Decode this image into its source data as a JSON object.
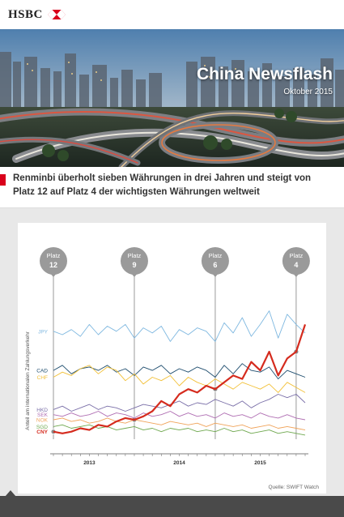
{
  "header": {
    "logo_text": "HSBC",
    "title": "China Newsflash",
    "date": "Oktober 2015"
  },
  "subheadline": "Renminbi überholt sieben Währungen in drei Jahren und steigt von Platz 12 auf Platz 4 der wichtigsten Währungen weltweit",
  "colors": {
    "brand_red": "#d9001b",
    "cny": "#d52b1e",
    "jpy": "#7fb8e0",
    "cad": "#1e4d6e",
    "chf": "#f2c037",
    "hkd": "#7a6fa8",
    "sek": "#b06fb3",
    "nok": "#f0a45b",
    "sgd": "#6fa84f",
    "marker": "#9a9a9a"
  },
  "chart_data": {
    "type": "line",
    "ylabel": "Anteil am internationalen Zahlungsverkehr",
    "x_tick_labels": [
      "2013",
      "2014",
      "2015"
    ],
    "markers": [
      {
        "line1": "Platz",
        "line2": "12",
        "x_index": 0
      },
      {
        "line1": "Platz",
        "line2": "9",
        "x_index": 9
      },
      {
        "line1": "Platz",
        "line2": "6",
        "x_index": 18
      },
      {
        "line1": "Platz",
        "line2": "4",
        "x_index": 27
      }
    ],
    "series": [
      {
        "name": "JPY",
        "color_key": "jpy",
        "values": [
          0.72,
          0.7,
          0.73,
          0.69,
          0.76,
          0.7,
          0.75,
          0.72,
          0.76,
          0.68,
          0.74,
          0.71,
          0.75,
          0.66,
          0.73,
          0.7,
          0.74,
          0.72,
          0.66,
          0.77,
          0.71,
          0.8,
          0.69,
          0.76,
          0.84,
          0.68,
          0.82,
          0.76,
          0.71
        ]
      },
      {
        "name": "CAD",
        "color_key": "cad",
        "values": [
          0.49,
          0.52,
          0.47,
          0.5,
          0.51,
          0.49,
          0.52,
          0.48,
          0.5,
          0.46,
          0.51,
          0.49,
          0.52,
          0.47,
          0.5,
          0.48,
          0.51,
          0.49,
          0.45,
          0.52,
          0.47,
          0.53,
          0.49,
          0.48,
          0.51,
          0.44,
          0.49,
          0.47,
          0.45
        ]
      },
      {
        "name": "CHF",
        "color_key": "chf",
        "values": [
          0.45,
          0.48,
          0.46,
          0.5,
          0.52,
          0.47,
          0.51,
          0.49,
          0.43,
          0.47,
          0.41,
          0.45,
          0.43,
          0.46,
          0.4,
          0.45,
          0.42,
          0.4,
          0.44,
          0.41,
          0.38,
          0.42,
          0.4,
          0.38,
          0.41,
          0.36,
          0.42,
          0.39,
          0.36
        ]
      },
      {
        "name": "HKD",
        "color_key": "hkd",
        "values": [
          0.26,
          0.28,
          0.25,
          0.27,
          0.29,
          0.26,
          0.28,
          0.27,
          0.25,
          0.27,
          0.29,
          0.28,
          0.27,
          0.29,
          0.31,
          0.28,
          0.3,
          0.29,
          0.32,
          0.3,
          0.28,
          0.31,
          0.27,
          0.3,
          0.32,
          0.35,
          0.33,
          0.35,
          0.3
        ]
      },
      {
        "name": "SEK",
        "color_key": "sek",
        "values": [
          0.23,
          0.22,
          0.24,
          0.22,
          0.23,
          0.25,
          0.22,
          0.24,
          0.23,
          0.21,
          0.24,
          0.22,
          0.23,
          0.25,
          0.22,
          0.24,
          0.22,
          0.23,
          0.21,
          0.24,
          0.22,
          0.23,
          0.21,
          0.24,
          0.22,
          0.21,
          0.23,
          0.21,
          0.2
        ]
      },
      {
        "name": "NOK",
        "color_key": "nok",
        "values": [
          0.2,
          0.21,
          0.19,
          0.2,
          0.18,
          0.19,
          0.21,
          0.19,
          0.18,
          0.2,
          0.19,
          0.18,
          0.17,
          0.19,
          0.18,
          0.17,
          0.18,
          0.16,
          0.18,
          0.17,
          0.16,
          0.17,
          0.15,
          0.16,
          0.17,
          0.15,
          0.16,
          0.15,
          0.14
        ]
      },
      {
        "name": "SGD",
        "color_key": "sgd",
        "values": [
          0.16,
          0.17,
          0.15,
          0.16,
          0.17,
          0.15,
          0.16,
          0.14,
          0.15,
          0.16,
          0.14,
          0.15,
          0.13,
          0.15,
          0.14,
          0.15,
          0.13,
          0.14,
          0.13,
          0.15,
          0.13,
          0.14,
          0.12,
          0.13,
          0.14,
          0.12,
          0.13,
          0.12,
          0.11
        ]
      },
      {
        "name": "CNY",
        "color_key": "cny",
        "values": [
          0.13,
          0.12,
          0.13,
          0.15,
          0.14,
          0.17,
          0.16,
          0.19,
          0.21,
          0.2,
          0.22,
          0.25,
          0.31,
          0.28,
          0.35,
          0.38,
          0.36,
          0.4,
          0.38,
          0.42,
          0.46,
          0.44,
          0.54,
          0.49,
          0.6,
          0.46,
          0.56,
          0.6,
          0.76
        ]
      }
    ],
    "grid": false,
    "source": "Quelle: SWIFT Watch"
  }
}
